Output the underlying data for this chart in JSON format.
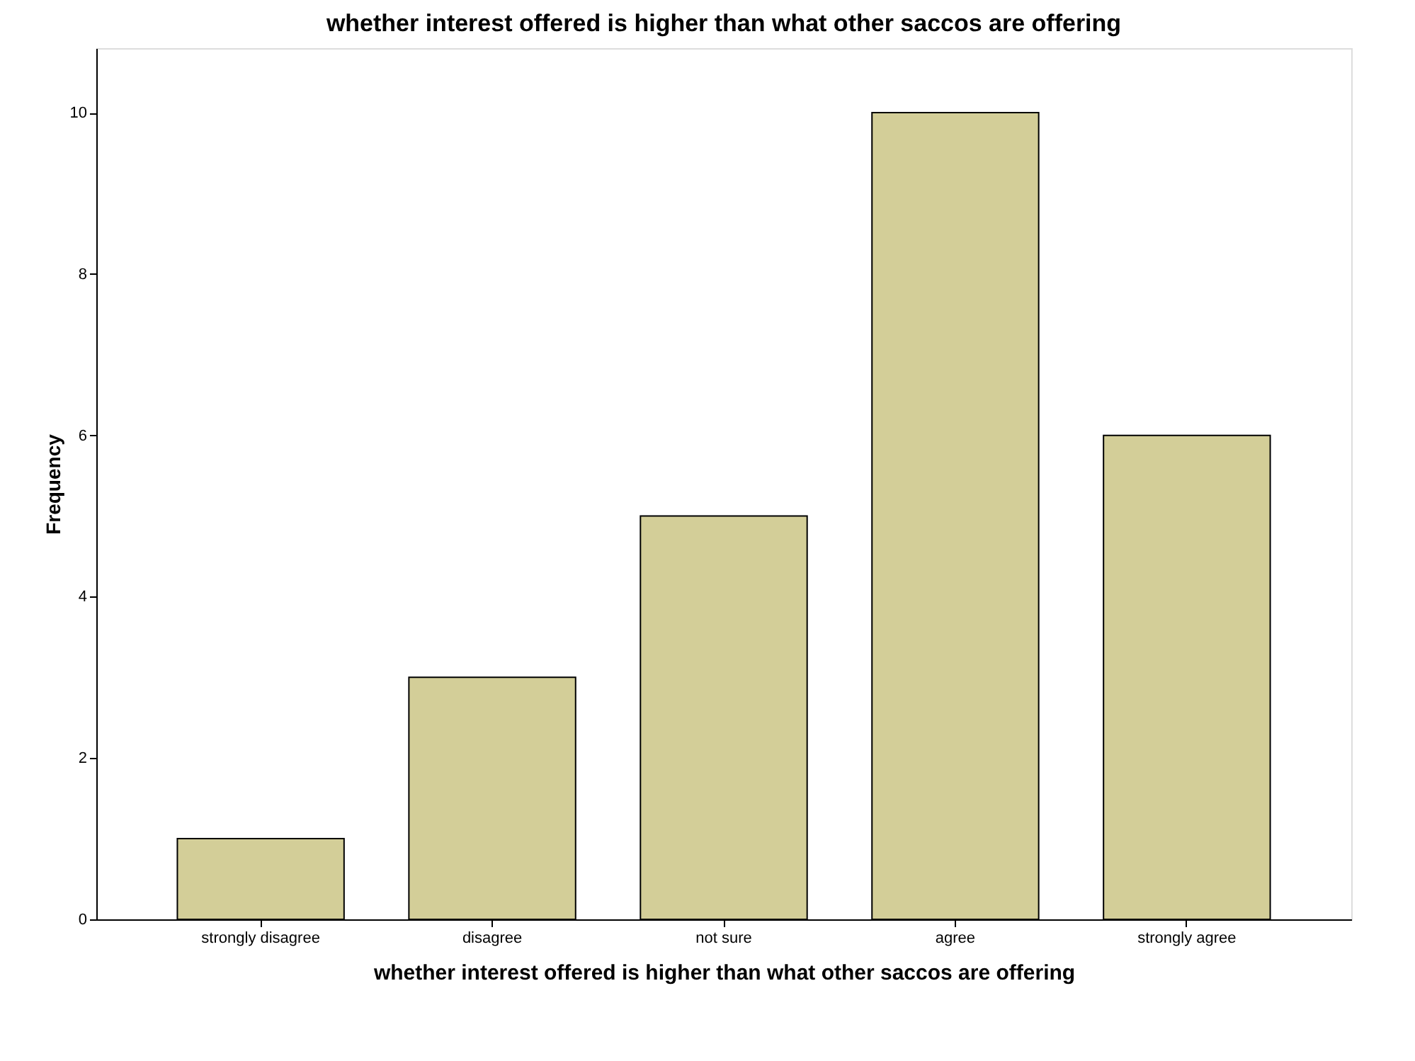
{
  "chart_data": {
    "type": "bar",
    "title": "whether interest offered is higher than what other saccos are offering",
    "xlabel": "whether interest offered is higher than what other saccos are offering",
    "ylabel": "Frequency",
    "categories": [
      "strongly disagree",
      "disagree",
      "not sure",
      "agree",
      "strongly agree"
    ],
    "values": [
      1,
      3,
      5,
      10,
      6
    ],
    "color": "#d3ce98",
    "ylim": [
      0,
      10.8
    ],
    "yticks": [
      0,
      2,
      4,
      6,
      8,
      10
    ],
    "grid": false,
    "legend": false
  }
}
